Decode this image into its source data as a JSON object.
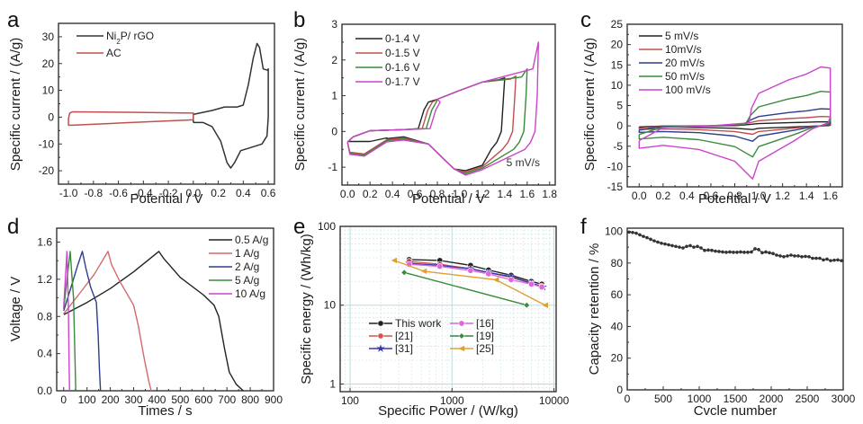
{
  "chart_data": [
    {
      "panel": "a",
      "type": "line",
      "xlabel": "Potential / V",
      "ylabel": "Specific current / (A/g)",
      "xlim": [
        -1.08,
        0.65
      ],
      "ylim": [
        -25,
        35
      ],
      "xticks": [
        -1.0,
        -0.8,
        -0.6,
        -0.4,
        -0.2,
        0.0,
        0.2,
        0.4,
        0.6
      ],
      "xtick_labels": [
        "-1.0",
        "-0.8",
        "-0.6",
        "-0.4",
        "-0.2",
        "0.0",
        "0.2",
        "0.4",
        "0.6"
      ],
      "yticks": [
        -20,
        -10,
        0,
        10,
        20,
        30
      ],
      "ytick_labels": [
        "-20",
        "-10",
        "0",
        "10",
        "20",
        "30"
      ],
      "legend_position": "top-left",
      "series": [
        {
          "name": "Ni2P/ rGO",
          "label_main": "Ni",
          "label_sub": "2",
          "label_rest": "P/ rGO",
          "color": "#333333",
          "points": [
            [
              0.0,
              -2
            ],
            [
              0.0,
              1
            ],
            [
              0.05,
              1.5
            ],
            [
              0.15,
              2.5
            ],
            [
              0.25,
              3.8
            ],
            [
              0.3,
              3.8
            ],
            [
              0.35,
              3.8
            ],
            [
              0.4,
              4.5
            ],
            [
              0.44,
              12
            ],
            [
              0.48,
              22
            ],
            [
              0.51,
              27.5
            ],
            [
              0.53,
              26
            ],
            [
              0.56,
              18
            ],
            [
              0.595,
              17.5
            ],
            [
              0.6,
              18
            ],
            [
              0.6,
              0
            ],
            [
              0.59,
              -7
            ],
            [
              0.55,
              -10
            ],
            [
              0.45,
              -11.5
            ],
            [
              0.38,
              -12.5
            ],
            [
              0.33,
              -17
            ],
            [
              0.3,
              -19
            ],
            [
              0.27,
              -17
            ],
            [
              0.22,
              -9
            ],
            [
              0.15,
              -3.5
            ],
            [
              0.08,
              -2
            ],
            [
              0.0,
              -2
            ]
          ]
        },
        {
          "name": "AC",
          "color": "#c0504d",
          "points": [
            [
              -0.97,
              2
            ],
            [
              -0.5,
              1.8
            ],
            [
              0.0,
              1.5
            ],
            [
              0.0,
              -1
            ],
            [
              -0.5,
              -2
            ],
            [
              -0.97,
              -3
            ],
            [
              -1.0,
              -3
            ],
            [
              -1.0,
              -0.5
            ],
            [
              -0.99,
              1.5
            ],
            [
              -0.97,
              2
            ]
          ]
        }
      ]
    },
    {
      "panel": "b",
      "type": "line",
      "xlabel": "Potential / V",
      "ylabel": "Specific current / (A/g)",
      "xlim": [
        -0.05,
        1.85
      ],
      "ylim": [
        -1.5,
        3.0
      ],
      "xticks": [
        0.0,
        0.2,
        0.4,
        0.6,
        0.8,
        1.0,
        1.2,
        1.4,
        1.6,
        1.8
      ],
      "xtick_labels": [
        "0.0",
        "0.2",
        "0.4",
        "0.6",
        "0.8",
        "1.0",
        "1.2",
        "1.4",
        "1.6",
        "1.8"
      ],
      "yticks": [
        -1,
        0,
        1,
        2,
        3
      ],
      "ytick_labels": [
        "-1",
        "0",
        "1",
        "2",
        "3"
      ],
      "annotation": "5 mV/s",
      "legend_position": "top-left",
      "series": [
        {
          "name": "0-1.4 V",
          "color": "#222222",
          "vmax": 1.4,
          "imax": 1.5
        },
        {
          "name": "0-1.5 V",
          "color": "#c0504d",
          "vmax": 1.5,
          "imax": 1.55
        },
        {
          "name": "0-1.6 V",
          "color": "#3a8a3a",
          "vmax": 1.6,
          "imax": 1.75
        },
        {
          "name": "0-1.7 V",
          "color": "#cc44cc",
          "vmax": 1.7,
          "imax": 2.5
        }
      ]
    },
    {
      "panel": "c",
      "type": "line",
      "xlabel": "Potential / V",
      "ylabel": "Specific current / (A/g)",
      "xlim": [
        -0.1,
        1.7
      ],
      "ylim": [
        -15,
        25
      ],
      "xticks": [
        0.0,
        0.2,
        0.4,
        0.6,
        0.8,
        1.0,
        1.2,
        1.4,
        1.6
      ],
      "xtick_labels": [
        "0.0",
        "0.2",
        "0.4",
        "0.6",
        "0.8",
        "1.0",
        "1.2",
        "1.4",
        "1.6"
      ],
      "yticks": [
        -15,
        -10,
        -5,
        0,
        5,
        10,
        15,
        20,
        25
      ],
      "ytick_labels": [
        "-15",
        "-10",
        "-5",
        "0",
        "5",
        "10",
        "15",
        "20",
        "25"
      ],
      "legend_position": "top-left",
      "series": [
        {
          "name": "5 mV/s",
          "color": "#222222",
          "scale": 1.0
        },
        {
          "name": "10mV/s",
          "color": "#c0504d",
          "scale": 2.3
        },
        {
          "name": "20 mV/s",
          "color": "#2c3e8c",
          "scale": 4.2
        },
        {
          "name": "50 mV/s",
          "color": "#3a8a3a",
          "scale": 8.5
        },
        {
          "name": "100 mV/s",
          "color": "#cc44cc",
          "scale": 14.5
        }
      ]
    },
    {
      "panel": "d",
      "type": "line",
      "xlabel": "Times / s",
      "ylabel": "Voltage / V",
      "xlim": [
        -30,
        900
      ],
      "ylim": [
        0.0,
        1.75
      ],
      "xticks": [
        0,
        100,
        200,
        300,
        400,
        500,
        600,
        700,
        800,
        900
      ],
      "xtick_labels": [
        "0",
        "100",
        "200",
        "300",
        "400",
        "500",
        "600",
        "700",
        "800",
        "900"
      ],
      "yticks": [
        0.0,
        0.4,
        0.8,
        1.2,
        1.6
      ],
      "ytick_labels": [
        "0.0",
        "0.4",
        "0.8",
        "1.2",
        "1.6"
      ],
      "legend_position": "top-right",
      "series": [
        {
          "name": "0.5 A/g",
          "color": "#222222",
          "points": [
            [
              0,
              0.82
            ],
            [
              100,
              0.95
            ],
            [
              200,
              1.1
            ],
            [
              300,
              1.28
            ],
            [
              408,
              1.5
            ],
            [
              430,
              1.42
            ],
            [
              500,
              1.22
            ],
            [
              600,
              1.03
            ],
            [
              645,
              0.92
            ],
            [
              665,
              0.8
            ],
            [
              690,
              0.45
            ],
            [
              710,
              0.2
            ],
            [
              740,
              0.07
            ],
            [
              770,
              0.0
            ]
          ]
        },
        {
          "name": "1 A/g",
          "color": "#d46a6a",
          "points": [
            [
              0,
              0.83
            ],
            [
              60,
              1.02
            ],
            [
              130,
              1.25
            ],
            [
              190,
              1.5
            ],
            [
              205,
              1.36
            ],
            [
              240,
              1.18
            ],
            [
              300,
              0.92
            ],
            [
              320,
              0.7
            ],
            [
              345,
              0.35
            ],
            [
              365,
              0.1
            ],
            [
              375,
              0.0
            ]
          ]
        },
        {
          "name": "2 A/g",
          "color": "#2c3e8c",
          "points": [
            [
              0,
              0.86
            ],
            [
              30,
              1.1
            ],
            [
              60,
              1.35
            ],
            [
              80,
              1.5
            ],
            [
              95,
              1.32
            ],
            [
              115,
              1.12
            ],
            [
              140,
              0.95
            ],
            [
              148,
              0.6
            ],
            [
              153,
              0.25
            ],
            [
              158,
              0.0
            ]
          ]
        },
        {
          "name": "5 A/g",
          "color": "#3a8a3a",
          "points": [
            [
              0,
              0.88
            ],
            [
              12,
              1.15
            ],
            [
              28,
              1.5
            ],
            [
              35,
              1.25
            ],
            [
              42,
              1.0
            ],
            [
              46,
              0.6
            ],
            [
              50,
              0.2
            ],
            [
              52,
              0.0
            ]
          ]
        },
        {
          "name": "10 A/g",
          "color": "#cc44cc",
          "points": [
            [
              0,
              0.9
            ],
            [
              7,
              1.2
            ],
            [
              14,
              1.5
            ],
            [
              17,
              1.2
            ],
            [
              20,
              0.9
            ],
            [
              22,
              0.5
            ],
            [
              24,
              0.15
            ],
            [
              25,
              0.0
            ]
          ]
        }
      ]
    },
    {
      "panel": "e",
      "type": "line",
      "xscale": "log",
      "yscale": "log",
      "xlabel": "Specific Power / (W/kg)",
      "ylabel": "Specific energy / (Wh/kg)",
      "xlim": [
        80,
        10500
      ],
      "ylim": [
        0.8,
        100
      ],
      "xticks": [
        100,
        1000,
        10000
      ],
      "xtick_labels": [
        "100",
        "1000",
        "10000"
      ],
      "yticks": [
        1,
        10,
        100
      ],
      "ytick_labels": [
        "1",
        "10",
        "100"
      ],
      "grid": true,
      "legend_position": "center-left",
      "series": [
        {
          "name": "This work",
          "color": "#222222",
          "marker": "circle",
          "points": [
            [
              380,
              38
            ],
            [
              760,
              37
            ],
            [
              1520,
              32
            ],
            [
              2280,
              28
            ],
            [
              3800,
              24
            ],
            [
              6000,
              20
            ],
            [
              7600,
              18.5
            ]
          ]
        },
        {
          "name": "[21]",
          "color": "#d9534f",
          "marker": "circle",
          "points": [
            [
              380,
              36
            ],
            [
              760,
              33
            ],
            [
              1520,
              29
            ],
            [
              2280,
              26
            ],
            [
              3800,
              22.5
            ],
            [
              6000,
              19
            ],
            [
              7600,
              17.5
            ]
          ]
        },
        {
          "name": "[31]",
          "color": "#3a3aa8",
          "marker": "star",
          "points": [
            [
              380,
              34
            ],
            [
              760,
              32
            ],
            [
              1520,
              29
            ],
            [
              2280,
              26
            ],
            [
              3800,
              23
            ],
            [
              6000,
              19
            ],
            [
              7800,
              17
            ]
          ]
        },
        {
          "name": "[16]",
          "color": "#dd66dd",
          "marker": "circle",
          "points": [
            [
              380,
              33
            ],
            [
              760,
              31
            ],
            [
              1520,
              27.5
            ],
            [
              2280,
              25
            ],
            [
              3800,
              21
            ],
            [
              6000,
              18.5
            ],
            [
              7600,
              17
            ]
          ]
        },
        {
          "name": "[19]",
          "color": "#3a8a3a",
          "marker": "diamond",
          "points": [
            [
              340,
              26
            ],
            [
              5400,
              10
            ]
          ]
        },
        {
          "name": "[25]",
          "color": "#e0a030",
          "marker": "triangle-left",
          "points": [
            [
              270,
              37
            ],
            [
              530,
              27
            ],
            [
              2700,
              21
            ],
            [
              8200,
              10
            ]
          ]
        }
      ]
    },
    {
      "panel": "f",
      "type": "scatter",
      "xlabel": "Cvcle number",
      "ylabel": "Capacity retention / %",
      "xlim": [
        0,
        3000
      ],
      "ylim": [
        0,
        102
      ],
      "xticks": [
        0,
        500,
        1000,
        1500,
        2000,
        2500,
        3000
      ],
      "xtick_labels": [
        "0",
        "500",
        "1000",
        "1500",
        "2000",
        "2500",
        "3000"
      ],
      "yticks": [
        0,
        20,
        40,
        60,
        80,
        100
      ],
      "ytick_labels": [
        "0",
        "20",
        "40",
        "60",
        "80",
        "100"
      ],
      "x": [
        25,
        75,
        125,
        175,
        225,
        275,
        325,
        375,
        425,
        475,
        525,
        575,
        625,
        675,
        725,
        775,
        825,
        875,
        925,
        975,
        1025,
        1075,
        1125,
        1175,
        1225,
        1275,
        1325,
        1375,
        1425,
        1475,
        1525,
        1575,
        1625,
        1675,
        1725,
        1775,
        1825,
        1875,
        1925,
        1975,
        2025,
        2075,
        2125,
        2175,
        2225,
        2275,
        2325,
        2375,
        2425,
        2475,
        2525,
        2575,
        2625,
        2675,
        2725,
        2775,
        2825,
        2875,
        2925,
        2975
      ],
      "y": [
        99.5,
        99.3,
        98.8,
        97.8,
        96.8,
        96,
        95,
        94,
        93.2,
        92.5,
        92,
        91.5,
        91,
        90.5,
        90,
        89.5,
        90.5,
        91,
        90,
        90.5,
        89.5,
        88,
        88.2,
        88,
        87.5,
        87.3,
        87,
        86.8,
        87,
        86.8,
        86.8,
        87,
        86.8,
        86.8,
        87,
        89,
        88.5,
        86.5,
        87,
        86.5,
        86,
        85,
        84.5,
        84,
        84.5,
        85,
        84.5,
        84.5,
        84,
        84.2,
        84,
        83,
        83,
        83,
        82,
        82.5,
        81.5,
        81.8,
        82,
        81.5
      ],
      "color": "#333333"
    }
  ]
}
